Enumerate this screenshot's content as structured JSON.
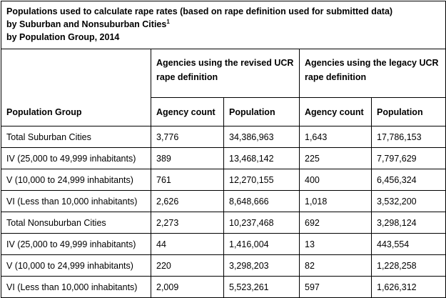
{
  "title": {
    "line1": "Populations used to calculate rape rates (based on rape definition used for submitted data)",
    "line2": "by Suburban and Nonsuburban Cities",
    "line2_sup": "1",
    "line3": "by Population Group, 2014"
  },
  "header": {
    "population_group": "Population Group",
    "revised_group": "Agencies using the revised UCR rape definition",
    "legacy_group": "Agencies using the legacy UCR rape definition",
    "agency_count": "Agency count",
    "population": "Population"
  },
  "rows": [
    {
      "group": "Total Suburban Cities",
      "rev_count": "3,776",
      "rev_pop": "34,386,963",
      "leg_count": "1,643",
      "leg_pop": "17,786,153"
    },
    {
      "group": "IV (25,000 to 49,999 inhabitants)",
      "rev_count": "389",
      "rev_pop": "13,468,142",
      "leg_count": "225",
      "leg_pop": "7,797,629"
    },
    {
      "group": "V (10,000 to 24,999 inhabitants)",
      "rev_count": "761",
      "rev_pop": "12,270,155",
      "leg_count": "400",
      "leg_pop": "6,456,324"
    },
    {
      "group": "VI (Less than 10,000 inhabitants)",
      "rev_count": "2,626",
      "rev_pop": "8,648,666",
      "leg_count": "1,018",
      "leg_pop": "3,532,200"
    },
    {
      "group": "Total Nonsuburban Cities",
      "rev_count": "2,273",
      "rev_pop": "10,237,468",
      "leg_count": "692",
      "leg_pop": "3,298,124"
    },
    {
      "group": "IV (25,000 to 49,999 inhabitants)",
      "rev_count": "44",
      "rev_pop": "1,416,004",
      "leg_count": "13",
      "leg_pop": "443,554"
    },
    {
      "group": "V (10,000 to 24,999 inhabitants)",
      "rev_count": "220",
      "rev_pop": "3,298,203",
      "leg_count": "82",
      "leg_pop": "1,228,258"
    },
    {
      "group": "VI (Less than 10,000 inhabitants)",
      "rev_count": "2,009",
      "rev_pop": "5,523,261",
      "leg_count": "597",
      "leg_pop": "1,626,312"
    }
  ]
}
